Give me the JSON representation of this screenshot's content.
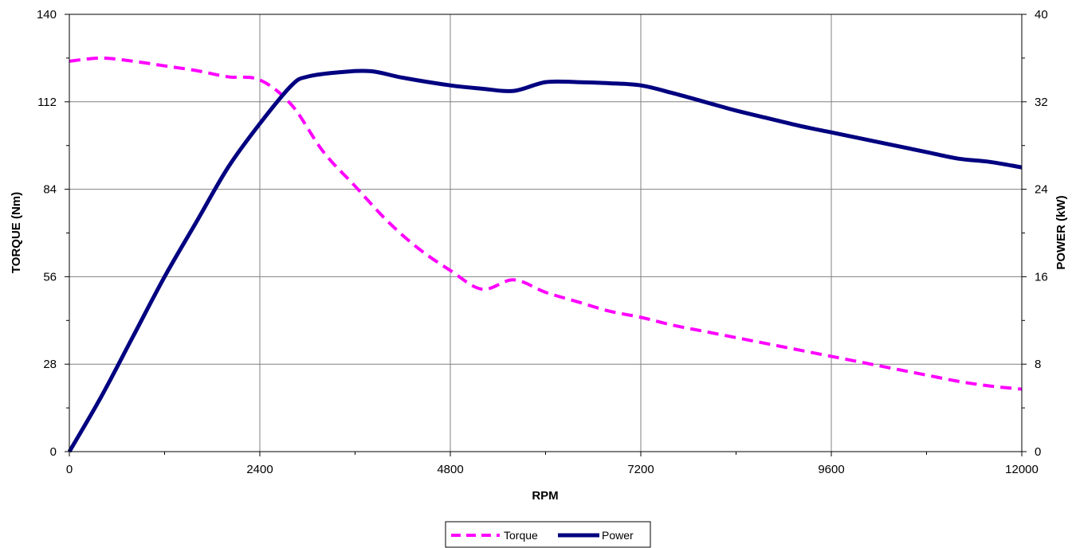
{
  "chart_data": {
    "type": "line",
    "xlabel": "RPM",
    "ylabel_left": "TORQUE (Nm)",
    "ylabel_right": "POWER (kW)",
    "xlim": [
      0,
      12000
    ],
    "ylim_left": [
      0,
      140
    ],
    "ylim_right": [
      0,
      40
    ],
    "x_ticks": [
      "0",
      "2400",
      "4800",
      "7200",
      "9600",
      "12000"
    ],
    "y_ticks_left": [
      "0",
      "28",
      "56",
      "84",
      "112",
      "140"
    ],
    "y_ticks_right": [
      "0",
      "8",
      "16",
      "24",
      "32",
      "40"
    ],
    "grid": true,
    "legend_position": "bottom",
    "series": [
      {
        "name": "Torque",
        "axis": "left",
        "color": "#ff00ff",
        "dash": "dashed",
        "x": [
          0,
          400,
          800,
          1200,
          1600,
          2000,
          2400,
          2800,
          3200,
          3600,
          4000,
          4400,
          4800,
          5200,
          5600,
          6000,
          6400,
          6800,
          7200,
          7600,
          8000,
          8400,
          8800,
          9200,
          9600,
          10000,
          10400,
          10800,
          11200,
          11600,
          12000
        ],
        "y": [
          125,
          126,
          125,
          123.5,
          122,
          120,
          119,
          111,
          96,
          85,
          74,
          65,
          58,
          52,
          55,
          51,
          48,
          45,
          43,
          40.5,
          38.5,
          36.5,
          34.5,
          32.5,
          30.5,
          28.5,
          26.5,
          24.5,
          22.5,
          21,
          20
        ]
      },
      {
        "name": "Power",
        "axis": "right",
        "color": "#000080",
        "dash": "solid",
        "x": [
          0,
          400,
          800,
          1200,
          1600,
          2000,
          2400,
          2800,
          3000,
          3400,
          3800,
          4200,
          4800,
          5200,
          5600,
          6000,
          6400,
          6800,
          7200,
          7600,
          8000,
          8400,
          8800,
          9200,
          9600,
          10000,
          10400,
          10800,
          11200,
          11600,
          12000
        ],
        "y": [
          0,
          5,
          10.5,
          16,
          21,
          26,
          30,
          33.5,
          34.3,
          34.7,
          34.8,
          34.2,
          33.5,
          33.2,
          33.0,
          33.8,
          33.8,
          33.7,
          33.5,
          32.8,
          32,
          31.2,
          30.5,
          29.8,
          29.2,
          28.6,
          28.0,
          27.4,
          26.8,
          26.5,
          26
        ]
      }
    ]
  }
}
